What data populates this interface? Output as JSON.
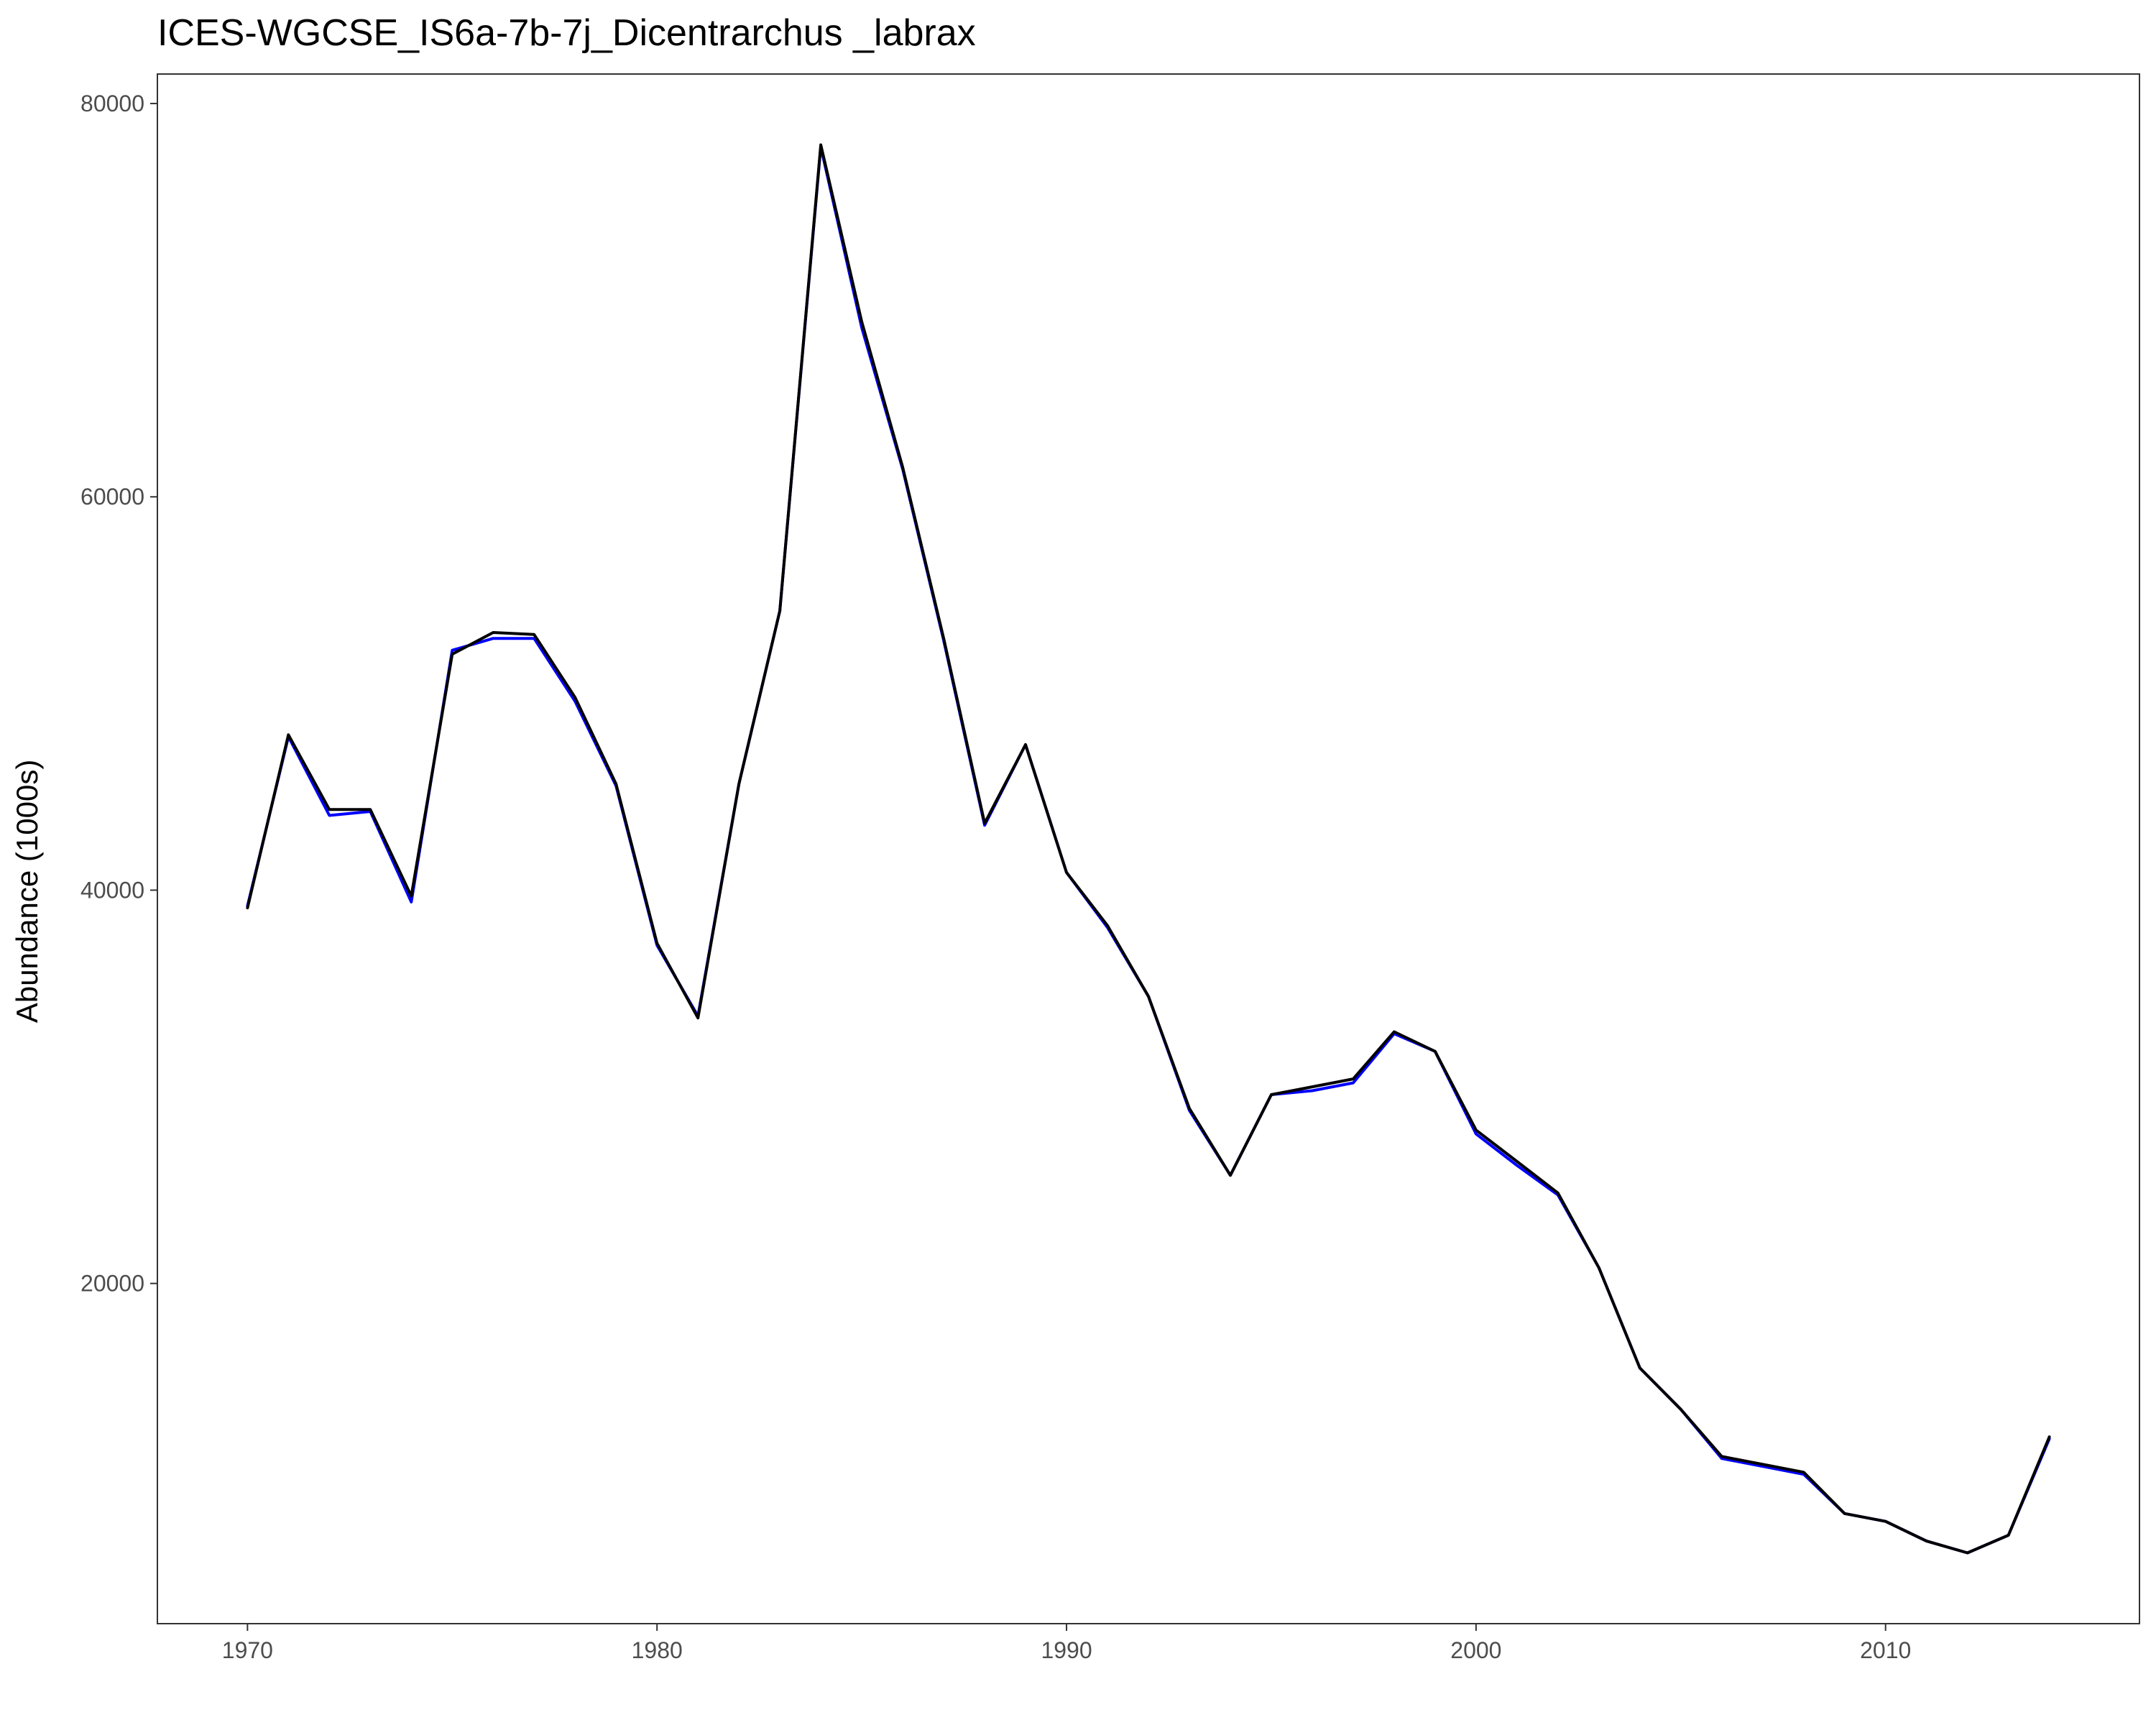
{
  "chart_data": {
    "type": "line",
    "title": "ICES-WGCSE_IS6a-7b-7j_Dicentrarchus _labrax",
    "xlabel": "",
    "ylabel": "Abundance (1000s)",
    "xlim": [
      1967.8,
      2016.2
    ],
    "ylim": [
      2700,
      81500
    ],
    "xticks": [
      1970,
      1980,
      1990,
      2000,
      2010
    ],
    "yticks": [
      20000,
      40000,
      60000,
      80000
    ],
    "grid": false,
    "legend": "none",
    "x": [
      1970,
      1971,
      1972,
      1973,
      1974,
      1975,
      1976,
      1977,
      1978,
      1979,
      1980,
      1981,
      1982,
      1983,
      1984,
      1985,
      1986,
      1987,
      1988,
      1989,
      1990,
      1991,
      1992,
      1993,
      1994,
      1995,
      1996,
      1997,
      1998,
      1999,
      2000,
      2001,
      2002,
      2003,
      2004,
      2005,
      2006,
      2007,
      2008,
      2009,
      2010,
      2011,
      2012,
      2013,
      2014
    ],
    "series": [
      {
        "color": "#0000ff",
        "values": [
          39200,
          47800,
          43800,
          44000,
          39400,
          52200,
          52800,
          52800,
          49600,
          45300,
          37200,
          33600,
          45400,
          54200,
          77800,
          68600,
          61400,
          52700,
          43300,
          47400,
          40900,
          38100,
          34600,
          28800,
          25500,
          29600,
          29800,
          30200,
          32700,
          31800,
          27600,
          26000,
          24500,
          20800,
          15700,
          13600,
          11100,
          10700,
          10300,
          8300,
          7900,
          6900,
          6300,
          7200,
          12100
        ]
      },
      {
        "color": "#000000",
        "values": [
          39100,
          47900,
          44100,
          44100,
          39700,
          52000,
          53100,
          53000,
          49800,
          45400,
          37300,
          33500,
          45400,
          54200,
          77900,
          68900,
          61500,
          52800,
          43400,
          47400,
          40900,
          38200,
          34600,
          28900,
          25500,
          29600,
          30000,
          30400,
          32800,
          31800,
          27800,
          26200,
          24600,
          20800,
          15700,
          13600,
          11200,
          10800,
          10400,
          8300,
          7900,
          6900,
          6300,
          7200,
          12200
        ]
      }
    ]
  }
}
